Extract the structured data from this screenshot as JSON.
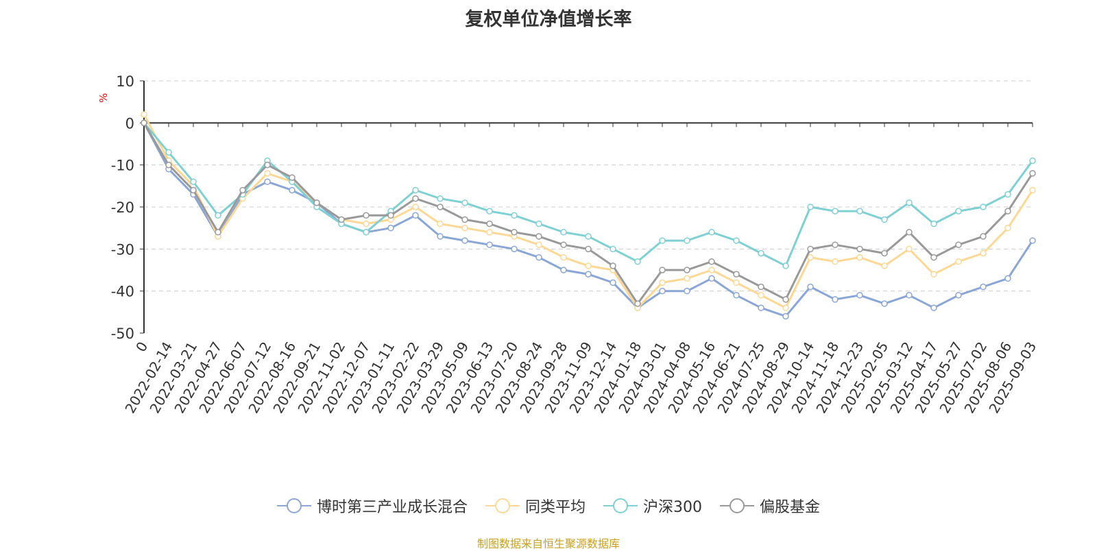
{
  "chart_data": {
    "type": "line",
    "title": "复权单位净值增长率",
    "unit": "%",
    "ylim": [
      -50,
      10
    ],
    "yticks": [
      10,
      0,
      -10,
      -20,
      -30,
      -40,
      -50
    ],
    "x_tick_labels": [
      "0",
      "2022-02-14",
      "2022-03-21",
      "2022-04-27",
      "2022-06-07",
      "2022-07-12",
      "2022-08-16",
      "2022-09-21",
      "2022-11-02",
      "2022-12-07",
      "2023-01-11",
      "2023-02-22",
      "2023-03-29",
      "2023-05-09",
      "2023-06-13",
      "2023-07-20",
      "2023-08-24",
      "2023-09-28",
      "2023-11-09",
      "2023-12-14",
      "2024-01-18",
      "2024-03-01",
      "2024-04-08",
      "2024-05-16",
      "2024-06-21",
      "2024-07-25",
      "2024-08-29",
      "2024-10-14",
      "2024-11-18",
      "2024-12-23",
      "2025-02-05",
      "2025-03-12",
      "2025-04-17",
      "2025-05-27",
      "2025-07-02",
      "2025-08-06",
      "2025-09-03"
    ],
    "grid": "dashed horizontal",
    "legend_position": "bottom",
    "series": [
      {
        "name": "博时第三产业成长混合",
        "color": "#8aa6d6",
        "values": [
          0,
          -11,
          -17,
          -27,
          -17,
          -14,
          -16,
          -19,
          -24,
          -26,
          -25,
          -22,
          -27,
          -28,
          -29,
          -30,
          -32,
          -35,
          -36,
          -38,
          -44,
          -40,
          -40,
          -37,
          -41,
          -44,
          -46,
          -39,
          -42,
          -41,
          -43,
          -41,
          -44,
          -41,
          -39,
          -37,
          -28
        ]
      },
      {
        "name": "同类平均",
        "color": "#fdd794",
        "values": [
          2,
          -9,
          -15,
          -27,
          -18,
          -12,
          -14,
          -19,
          -23,
          -24,
          -23,
          -20,
          -24,
          -25,
          -26,
          -27,
          -29,
          -32,
          -34,
          -35,
          -44,
          -38,
          -37,
          -35,
          -38,
          -41,
          -44,
          -32,
          -33,
          -32,
          -34,
          -30,
          -36,
          -33,
          -31,
          -25,
          -16
        ]
      },
      {
        "name": "沪深300",
        "color": "#7fd0d3",
        "values": [
          0,
          -7,
          -14,
          -22,
          -17,
          -9,
          -14,
          -20,
          -24,
          -26,
          -21,
          -16,
          -18,
          -19,
          -21,
          -22,
          -24,
          -26,
          -27,
          -30,
          -33,
          -28,
          -28,
          -26,
          -28,
          -31,
          -34,
          -20,
          -21,
          -21,
          -23,
          -19,
          -24,
          -21,
          -20,
          -17,
          -9
        ]
      },
      {
        "name": "偏股基金",
        "color": "#999999",
        "values": [
          0,
          -10,
          -16,
          -26,
          -16,
          -10,
          -13,
          -19,
          -23,
          -22,
          -22,
          -18,
          -20,
          -23,
          -24,
          -26,
          -27,
          -29,
          -30,
          -34,
          -43,
          -35,
          -35,
          -33,
          -36,
          -39,
          -42,
          -30,
          -29,
          -30,
          -31,
          -26,
          -32,
          -29,
          -27,
          -21,
          -12
        ]
      }
    ]
  },
  "source": "制图数据来自恒生聚源数据库"
}
